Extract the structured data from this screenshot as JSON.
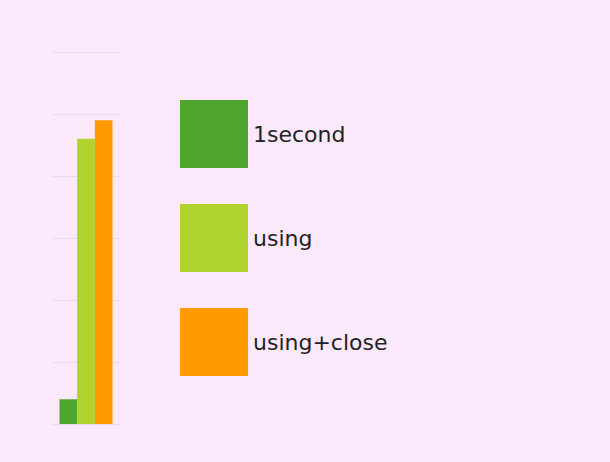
{
  "chart_data": {
    "type": "bar",
    "categories": [
      null
    ],
    "series": [
      {
        "name": "1second",
        "color": "#4fa62f",
        "values": [
          0.4
        ]
      },
      {
        "name": "using",
        "color": "#b0d22f",
        "values": [
          4.6
        ]
      },
      {
        "name": "using+close",
        "color": "#ff9a00",
        "values": [
          4.9
        ]
      }
    ],
    "ylim": [
      0,
      6
    ],
    "yticks": [
      0,
      1,
      2,
      3,
      4,
      5,
      6
    ],
    "grid": true,
    "legend": "right",
    "tick_labels": false
  }
}
